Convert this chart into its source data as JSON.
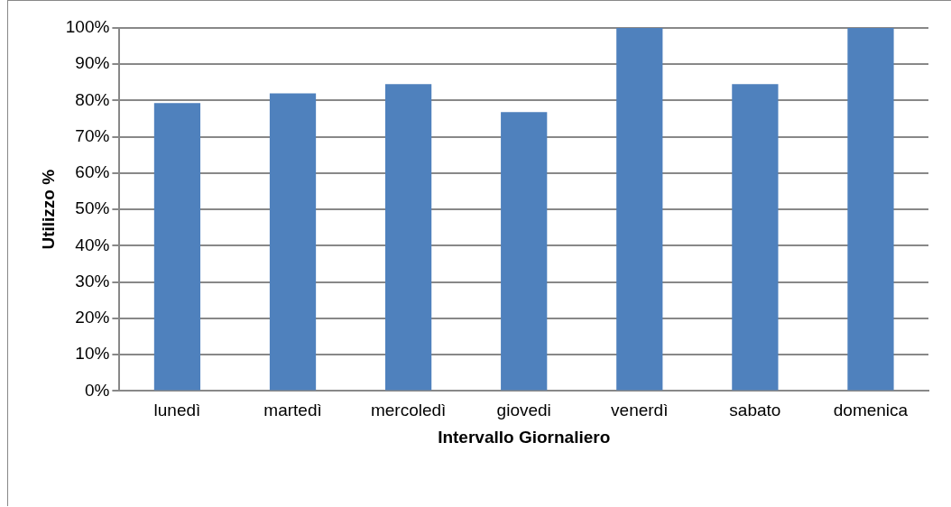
{
  "chart_data": {
    "type": "bar",
    "xlabel": "Intervallo Giornaliero",
    "ylabel": "Utilizzo %",
    "categories": [
      "lunedì",
      "martedì",
      "mercoledì",
      "giovedi",
      "venerdì",
      "sabato",
      "domenica"
    ],
    "values": [
      79.3,
      82.0,
      84.5,
      76.8,
      100,
      84.5,
      100
    ],
    "color": "#4f81bd",
    "ylim": [
      0,
      100
    ],
    "yticks": [
      {
        "value": 0,
        "label": "0%"
      },
      {
        "value": 10,
        "label": "10%"
      },
      {
        "value": 20,
        "label": "20%"
      },
      {
        "value": 30,
        "label": "30%"
      },
      {
        "value": 40,
        "label": "40%"
      },
      {
        "value": 50,
        "label": "50%"
      },
      {
        "value": 60,
        "label": "60%"
      },
      {
        "value": 70,
        "label": "70%"
      },
      {
        "value": 80,
        "label": "80%"
      },
      {
        "value": 90,
        "label": "90%"
      },
      {
        "value": 100,
        "label": "100%"
      }
    ],
    "grid": "y",
    "legend": false
  }
}
